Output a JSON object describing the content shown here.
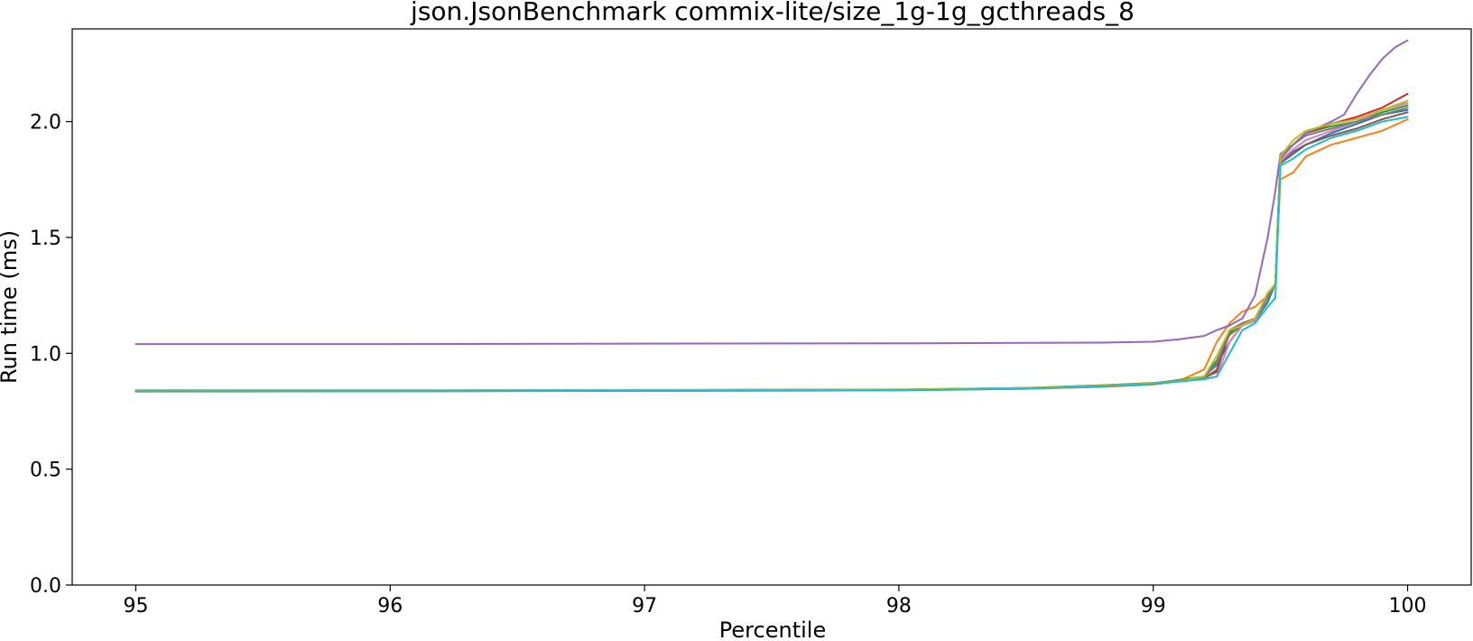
{
  "chart_data": {
    "type": "line",
    "title": "json.JsonBenchmark commix-lite/size_1g-1g_gcthreads_8",
    "xlabel": "Percentile",
    "ylabel": "Run time (ms)",
    "xlim": [
      94.75,
      100.25
    ],
    "ylim": [
      0.0,
      2.4
    ],
    "xticks": [
      95,
      96,
      97,
      98,
      99,
      100
    ],
    "xtick_labels": [
      "95",
      "96",
      "97",
      "98",
      "99",
      "100"
    ],
    "yticks": [
      0.0,
      0.5,
      1.0,
      1.5,
      2.0
    ],
    "ytick_labels": [
      "0.0",
      "0.5",
      "1.0",
      "1.5",
      "2.0"
    ],
    "grid": false,
    "legend": "none",
    "series": [
      {
        "color": "#1f77b4",
        "points": [
          [
            95,
            0.84
          ],
          [
            96,
            0.84
          ],
          [
            97,
            0.841
          ],
          [
            98,
            0.843
          ],
          [
            98.5,
            0.85
          ],
          [
            98.8,
            0.86
          ],
          [
            99.0,
            0.87
          ],
          [
            99.1,
            0.88
          ],
          [
            99.2,
            0.9
          ],
          [
            99.25,
            0.95
          ],
          [
            99.3,
            1.05
          ],
          [
            99.35,
            1.12
          ],
          [
            99.4,
            1.14
          ],
          [
            99.45,
            1.22
          ],
          [
            99.48,
            1.3
          ],
          [
            99.5,
            1.83
          ],
          [
            99.55,
            1.87
          ],
          [
            99.6,
            1.9
          ],
          [
            99.7,
            1.95
          ],
          [
            99.8,
            1.99
          ],
          [
            99.9,
            2.03
          ],
          [
            100,
            2.05
          ]
        ]
      },
      {
        "color": "#ff7f0e",
        "points": [
          [
            95,
            0.835
          ],
          [
            96,
            0.836
          ],
          [
            97,
            0.838
          ],
          [
            98,
            0.84
          ],
          [
            98.5,
            0.847
          ],
          [
            98.8,
            0.855
          ],
          [
            99.0,
            0.865
          ],
          [
            99.1,
            0.88
          ],
          [
            99.2,
            0.93
          ],
          [
            99.25,
            1.05
          ],
          [
            99.3,
            1.13
          ],
          [
            99.35,
            1.18
          ],
          [
            99.4,
            1.2
          ],
          [
            99.45,
            1.25
          ],
          [
            99.48,
            1.3
          ],
          [
            99.5,
            1.75
          ],
          [
            99.55,
            1.78
          ],
          [
            99.6,
            1.85
          ],
          [
            99.7,
            1.9
          ],
          [
            99.8,
            1.93
          ],
          [
            99.9,
            1.96
          ],
          [
            100,
            2.01
          ]
        ]
      },
      {
        "color": "#2ca02c",
        "points": [
          [
            95,
            0.838
          ],
          [
            96,
            0.838
          ],
          [
            97,
            0.84
          ],
          [
            98,
            0.842
          ],
          [
            98.5,
            0.85
          ],
          [
            98.8,
            0.86
          ],
          [
            99.0,
            0.87
          ],
          [
            99.1,
            0.885
          ],
          [
            99.2,
            0.9
          ],
          [
            99.25,
            0.97
          ],
          [
            99.3,
            1.08
          ],
          [
            99.35,
            1.12
          ],
          [
            99.4,
            1.15
          ],
          [
            99.45,
            1.25
          ],
          [
            99.48,
            1.3
          ],
          [
            99.5,
            1.85
          ],
          [
            99.55,
            1.9
          ],
          [
            99.6,
            1.95
          ],
          [
            99.7,
            1.98
          ],
          [
            99.8,
            2.0
          ],
          [
            99.9,
            2.04
          ],
          [
            100,
            2.07
          ]
        ]
      },
      {
        "color": "#d62728",
        "points": [
          [
            95,
            0.839
          ],
          [
            96,
            0.839
          ],
          [
            97,
            0.841
          ],
          [
            98,
            0.843
          ],
          [
            98.5,
            0.85
          ],
          [
            98.8,
            0.862
          ],
          [
            99.0,
            0.872
          ],
          [
            99.1,
            0.882
          ],
          [
            99.2,
            0.895
          ],
          [
            99.25,
            0.92
          ],
          [
            99.3,
            1.1
          ],
          [
            99.35,
            1.13
          ],
          [
            99.4,
            1.15
          ],
          [
            99.45,
            1.25
          ],
          [
            99.48,
            1.3
          ],
          [
            99.5,
            1.84
          ],
          [
            99.55,
            1.9
          ],
          [
            99.6,
            1.95
          ],
          [
            99.7,
            1.99
          ],
          [
            99.8,
            2.02
          ],
          [
            99.9,
            2.06
          ],
          [
            100,
            2.12
          ]
        ]
      },
      {
        "color": "#9467bd",
        "points": [
          [
            95,
            1.04
          ],
          [
            96,
            1.04
          ],
          [
            97,
            1.042
          ],
          [
            98,
            1.043
          ],
          [
            98.5,
            1.045
          ],
          [
            98.8,
            1.046
          ],
          [
            99.0,
            1.05
          ],
          [
            99.1,
            1.06
          ],
          [
            99.2,
            1.075
          ],
          [
            99.25,
            1.1
          ],
          [
            99.3,
            1.12
          ],
          [
            99.35,
            1.15
          ],
          [
            99.4,
            1.25
          ],
          [
            99.45,
            1.5
          ],
          [
            99.48,
            1.7
          ],
          [
            99.5,
            1.86
          ],
          [
            99.55,
            1.9
          ],
          [
            99.6,
            1.95
          ],
          [
            99.7,
            2.0
          ],
          [
            99.75,
            2.03
          ],
          [
            99.8,
            2.12
          ],
          [
            99.85,
            2.2
          ],
          [
            99.9,
            2.27
          ],
          [
            99.95,
            2.32
          ],
          [
            100,
            2.35
          ]
        ]
      },
      {
        "color": "#8c564b",
        "points": [
          [
            95,
            0.837
          ],
          [
            96,
            0.837
          ],
          [
            97,
            0.839
          ],
          [
            98,
            0.841
          ],
          [
            98.5,
            0.848
          ],
          [
            98.8,
            0.858
          ],
          [
            99.0,
            0.868
          ],
          [
            99.1,
            0.88
          ],
          [
            99.2,
            0.89
          ],
          [
            99.25,
            0.93
          ],
          [
            99.3,
            1.09
          ],
          [
            99.35,
            1.13
          ],
          [
            99.4,
            1.14
          ],
          [
            99.45,
            1.24
          ],
          [
            99.48,
            1.3
          ],
          [
            99.5,
            1.82
          ],
          [
            99.55,
            1.86
          ],
          [
            99.6,
            1.9
          ],
          [
            99.7,
            1.94
          ],
          [
            99.8,
            1.97
          ],
          [
            99.9,
            2.01
          ],
          [
            100,
            2.04
          ]
        ]
      },
      {
        "color": "#e377c2",
        "points": [
          [
            95,
            0.838
          ],
          [
            96,
            0.838
          ],
          [
            97,
            0.84
          ],
          [
            98,
            0.842
          ],
          [
            98.5,
            0.849
          ],
          [
            98.8,
            0.86
          ],
          [
            99.0,
            0.87
          ],
          [
            99.1,
            0.88
          ],
          [
            99.2,
            0.89
          ],
          [
            99.25,
            0.9
          ],
          [
            99.3,
            1.05
          ],
          [
            99.35,
            1.12
          ],
          [
            99.4,
            1.14
          ],
          [
            99.45,
            1.24
          ],
          [
            99.48,
            1.3
          ],
          [
            99.5,
            1.83
          ],
          [
            99.55,
            1.88
          ],
          [
            99.6,
            1.92
          ],
          [
            99.7,
            1.96
          ],
          [
            99.8,
            2.0
          ],
          [
            99.9,
            2.05
          ],
          [
            100,
            2.08
          ]
        ]
      },
      {
        "color": "#7f7f7f",
        "points": [
          [
            95,
            0.84
          ],
          [
            96,
            0.84
          ],
          [
            97,
            0.842
          ],
          [
            98,
            0.844
          ],
          [
            98.5,
            0.851
          ],
          [
            98.8,
            0.862
          ],
          [
            99.0,
            0.872
          ],
          [
            99.1,
            0.882
          ],
          [
            99.2,
            0.892
          ],
          [
            99.25,
            0.96
          ],
          [
            99.3,
            1.1
          ],
          [
            99.35,
            1.13
          ],
          [
            99.4,
            1.15
          ],
          [
            99.45,
            1.24
          ],
          [
            99.48,
            1.3
          ],
          [
            99.5,
            1.84
          ],
          [
            99.55,
            1.9
          ],
          [
            99.6,
            1.94
          ],
          [
            99.7,
            1.97
          ],
          [
            99.8,
            2.0
          ],
          [
            99.9,
            2.03
          ],
          [
            100,
            2.06
          ]
        ]
      },
      {
        "color": "#bcbd22",
        "points": [
          [
            95,
            0.839
          ],
          [
            96,
            0.839
          ],
          [
            97,
            0.841
          ],
          [
            98,
            0.843
          ],
          [
            98.5,
            0.85
          ],
          [
            98.8,
            0.86
          ],
          [
            99.0,
            0.87
          ],
          [
            99.1,
            0.88
          ],
          [
            99.2,
            0.9
          ],
          [
            99.25,
            0.99
          ],
          [
            99.3,
            1.1
          ],
          [
            99.35,
            1.12
          ],
          [
            99.4,
            1.15
          ],
          [
            99.45,
            1.26
          ],
          [
            99.48,
            1.3
          ],
          [
            99.5,
            1.85
          ],
          [
            99.55,
            1.92
          ],
          [
            99.6,
            1.96
          ],
          [
            99.7,
            1.99
          ],
          [
            99.8,
            2.01
          ],
          [
            99.9,
            2.05
          ],
          [
            100,
            2.09
          ]
        ]
      },
      {
        "color": "#17becf",
        "points": [
          [
            95,
            0.836
          ],
          [
            96,
            0.836
          ],
          [
            97,
            0.838
          ],
          [
            98,
            0.84
          ],
          [
            98.5,
            0.847
          ],
          [
            98.8,
            0.857
          ],
          [
            99.0,
            0.867
          ],
          [
            99.1,
            0.878
          ],
          [
            99.2,
            0.888
          ],
          [
            99.25,
            0.9
          ],
          [
            99.3,
            1.0
          ],
          [
            99.35,
            1.1
          ],
          [
            99.4,
            1.13
          ],
          [
            99.45,
            1.2
          ],
          [
            99.48,
            1.24
          ],
          [
            99.5,
            1.81
          ],
          [
            99.55,
            1.84
          ],
          [
            99.6,
            1.88
          ],
          [
            99.7,
            1.93
          ],
          [
            99.8,
            1.96
          ],
          [
            99.9,
            2.0
          ],
          [
            100,
            2.02
          ]
        ]
      }
    ]
  }
}
